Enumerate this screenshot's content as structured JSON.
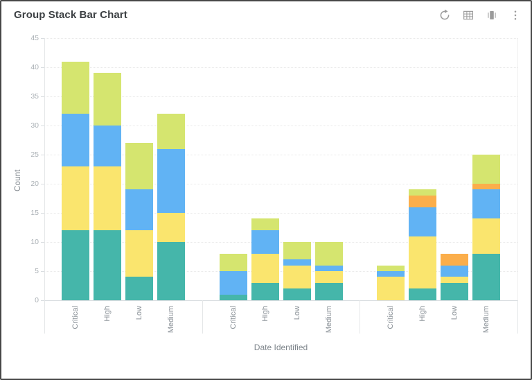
{
  "window": {
    "title": "Group Stack Bar Chart"
  },
  "toolbar": {
    "icons": [
      "refresh-icon",
      "table-view-icon",
      "chart-carousel-icon",
      "more-menu-icon"
    ],
    "icon_color": "#9b9b9b"
  },
  "chart_data": {
    "type": "bar",
    "variant": "grouped-stacked",
    "title": "Group Stack Bar Chart",
    "xlabel": "Date Identified",
    "ylabel": "Count",
    "ylim": [
      0,
      45
    ],
    "yticks": [
      45,
      40,
      35,
      30,
      25,
      20,
      15,
      10,
      5,
      0
    ],
    "grid": true,
    "legend": "none",
    "categories": [
      "Critical",
      "High",
      "Low",
      "Medium"
    ],
    "stack_order": [
      "teal",
      "yellow",
      "blue",
      "orange",
      "lime"
    ],
    "series_colors": {
      "teal": "#45B6AA",
      "yellow": "#FAE56E",
      "blue": "#61B3F4",
      "orange": "#FBAE4B",
      "lime": "#D5E56F"
    },
    "groups": [
      {
        "bars": [
          {
            "label": "Critical",
            "segments": {
              "teal": 12,
              "yellow": 11,
              "blue": 9,
              "orange": 0,
              "lime": 9
            },
            "total": 41
          },
          {
            "label": "High",
            "segments": {
              "teal": 12,
              "yellow": 11,
              "blue": 7,
              "orange": 0,
              "lime": 9
            },
            "total": 39
          },
          {
            "label": "Low",
            "segments": {
              "teal": 4,
              "yellow": 8,
              "blue": 7,
              "orange": 0,
              "lime": 8
            },
            "total": 27
          },
          {
            "label": "Medium",
            "segments": {
              "teal": 10,
              "yellow": 5,
              "blue": 11,
              "orange": 0,
              "lime": 6
            },
            "total": 32
          }
        ]
      },
      {
        "bars": [
          {
            "label": "Critical",
            "segments": {
              "teal": 1,
              "yellow": 0,
              "blue": 4,
              "orange": 0,
              "lime": 3
            },
            "total": 8
          },
          {
            "label": "High",
            "segments": {
              "teal": 3,
              "yellow": 5,
              "blue": 4,
              "orange": 0,
              "lime": 2
            },
            "total": 14
          },
          {
            "label": "Low",
            "segments": {
              "teal": 2,
              "yellow": 4,
              "blue": 1,
              "orange": 0,
              "lime": 3
            },
            "total": 10
          },
          {
            "label": "Medium",
            "segments": {
              "teal": 3,
              "yellow": 2,
              "blue": 1,
              "orange": 0,
              "lime": 4
            },
            "total": 10
          }
        ]
      },
      {
        "bars": [
          {
            "label": "Critical",
            "segments": {
              "teal": 0,
              "yellow": 4,
              "blue": 1,
              "orange": 0,
              "lime": 1
            },
            "total": 6
          },
          {
            "label": "High",
            "segments": {
              "teal": 2,
              "yellow": 9,
              "blue": 5,
              "orange": 2,
              "lime": 1
            },
            "total": 19
          },
          {
            "label": "Low",
            "segments": {
              "teal": 3,
              "yellow": 1,
              "blue": 2,
              "orange": 2,
              "lime": 0
            },
            "total": 8
          },
          {
            "label": "Medium",
            "segments": {
              "teal": 8,
              "yellow": 6,
              "blue": 5,
              "orange": 1,
              "lime": 5
            },
            "total": 25
          }
        ]
      }
    ]
  }
}
